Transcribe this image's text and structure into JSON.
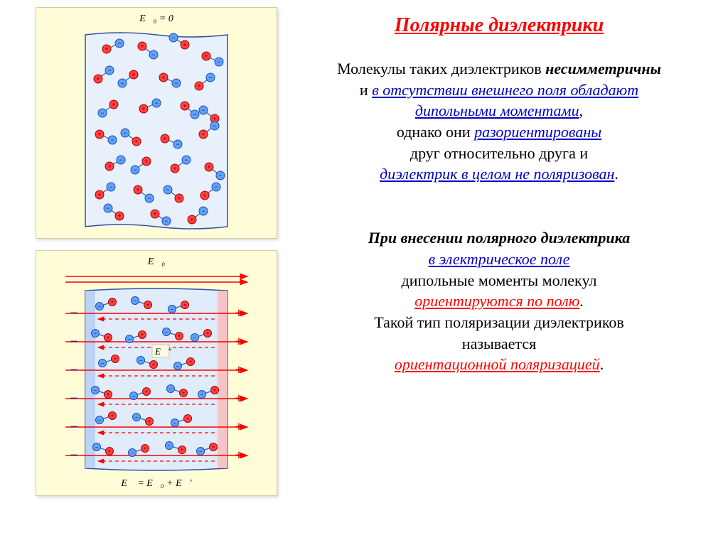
{
  "title": "Полярные диэлектрики",
  "para1": {
    "l1a": "Молекулы таких диэлектриков ",
    "l1b": "несимметричны",
    "l2a": "и ",
    "l2b": "в отсутствии внешнего поля обладают",
    "l3": "дипольными моментами",
    "l4a": "однако они ",
    "l4b": "разориентированы",
    "l5": "друг относительно друга и",
    "l6": "диэлектрик в целом не поляризован"
  },
  "para2": {
    "l1": "При внесении полярного диэлектрика",
    "l2": "в электрическое поле",
    "l3": "дипольные моменты молекул",
    "l4": "ориентируются по полю",
    "l5": "Такой тип поляризации диэлектриков",
    "l6": "называется",
    "l7": "ориентационной поляризацией"
  },
  "fig1": {
    "label_html": "E⃗₀ = 0",
    "bg": "#e8f0fc",
    "border": "#3050a0",
    "plus_fill": "#ff4040",
    "plus_stroke": "#aa0000",
    "minus_fill": "#60a0ff",
    "minus_stroke": "#2050a0",
    "link": "#3060c0",
    "dipoles": [
      [
        40,
        30,
        58,
        22
      ],
      [
        90,
        26,
        106,
        38
      ],
      [
        150,
        24,
        134,
        14
      ],
      [
        180,
        40,
        198,
        48
      ],
      [
        28,
        72,
        44,
        60
      ],
      [
        78,
        66,
        62,
        78
      ],
      [
        120,
        70,
        138,
        78
      ],
      [
        170,
        82,
        186,
        70
      ],
      [
        50,
        108,
        34,
        120
      ],
      [
        92,
        114,
        110,
        106
      ],
      [
        150,
        110,
        164,
        122
      ],
      [
        192,
        128,
        176,
        116
      ],
      [
        30,
        150,
        48,
        158
      ],
      [
        82,
        160,
        66,
        148
      ],
      [
        122,
        156,
        140,
        164
      ],
      [
        176,
        150,
        192,
        138
      ],
      [
        44,
        195,
        60,
        186
      ],
      [
        96,
        188,
        80,
        200
      ],
      [
        136,
        198,
        152,
        186
      ],
      [
        184,
        196,
        200,
        208
      ],
      [
        30,
        235,
        46,
        224
      ],
      [
        84,
        228,
        100,
        240
      ],
      [
        142,
        240,
        126,
        228
      ],
      [
        178,
        236,
        194,
        224
      ],
      [
        58,
        265,
        42,
        254
      ],
      [
        108,
        262,
        124,
        272
      ],
      [
        160,
        270,
        176,
        258
      ]
    ]
  },
  "fig2": {
    "label_top": "E⃗₀",
    "label_bot": "E⃗ = E⃗₀ + E⃗′",
    "label_mid": "E⃗′",
    "bg": "#e0ecfa",
    "left_band": "#b8d0f4",
    "right_band": "#f8c0c0",
    "border": "#3050a0",
    "arrow": "#ff0000",
    "dash": "#ff0000",
    "rows": [
      60,
      100,
      140,
      180,
      220,
      260
    ],
    "dipoles": [
      [
        50,
        50,
        68,
        44
      ],
      [
        100,
        42,
        118,
        48
      ],
      [
        152,
        54,
        170,
        48
      ],
      [
        44,
        88,
        62,
        94
      ],
      [
        92,
        96,
        110,
        90
      ],
      [
        144,
        86,
        162,
        92
      ],
      [
        184,
        94,
        202,
        88
      ],
      [
        54,
        130,
        72,
        124
      ],
      [
        108,
        126,
        126,
        132
      ],
      [
        160,
        134,
        178,
        128
      ],
      [
        44,
        168,
        62,
        174
      ],
      [
        98,
        176,
        116,
        170
      ],
      [
        150,
        166,
        168,
        172
      ],
      [
        194,
        174,
        212,
        168
      ],
      [
        50,
        210,
        68,
        204
      ],
      [
        102,
        206,
        120,
        212
      ],
      [
        156,
        214,
        174,
        208
      ],
      [
        46,
        248,
        64,
        254
      ],
      [
        96,
        256,
        114,
        250
      ],
      [
        148,
        246,
        166,
        252
      ],
      [
        192,
        254,
        210,
        248
      ]
    ]
  },
  "colors": {
    "page_bg": "#ffffff",
    "panel_bg": "#fffdd8"
  }
}
